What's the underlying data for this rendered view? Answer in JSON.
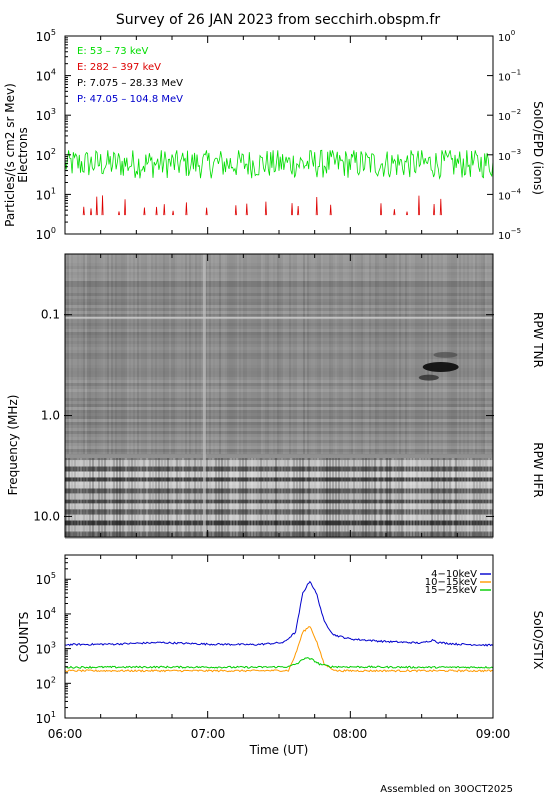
{
  "title": "Survey of 26 JAN 2023 from secchirh.obspm.fr",
  "footer": "Assembled on 30OCT2025",
  "x_axis": {
    "label": "Time (UT)",
    "ticks": [
      "06:00",
      "07:00",
      "08:00",
      "09:00"
    ]
  },
  "chart_data": [
    {
      "type": "line",
      "panel": "SoIO/EPD",
      "ylabel": [
        "Particles/(s cm2 sr Mev)",
        "Electrons"
      ],
      "right_label": "SoIO/EPD (ions)",
      "yscale": "log",
      "ylim": [
        1,
        100000
      ],
      "left_ticks": [
        {
          "v": 1,
          "b": "10",
          "e": "0"
        },
        {
          "v": 10,
          "b": "10",
          "e": "1"
        },
        {
          "v": 100,
          "b": "10",
          "e": "2"
        },
        {
          "v": 1000,
          "b": "10",
          "e": "3"
        },
        {
          "v": 10000,
          "b": "10",
          "e": "4"
        },
        {
          "v": 100000,
          "b": "10",
          "e": "5"
        }
      ],
      "right_ticks": [
        {
          "b": "10",
          "e": "−5"
        },
        {
          "b": "10",
          "e": "−4"
        },
        {
          "b": "10",
          "e": "−3"
        },
        {
          "b": "10",
          "e": "−2"
        },
        {
          "b": "10",
          "e": "−1"
        },
        {
          "b": "10",
          "e": "0"
        }
      ],
      "legend": [
        {
          "name": "E: 53 – 73 keV",
          "color": "#00dd00"
        },
        {
          "name": "E: 282 – 397 keV",
          "color": "#dd0000"
        },
        {
          "name": "P: 7.075 – 28.33 MeV",
          "color": "#000000"
        },
        {
          "name": "P: 47.05 – 104.8 MeV",
          "color": "#0000cc"
        }
      ],
      "series": [
        {
          "name": "E: 53 – 73 keV",
          "color": "#00dd00",
          "typical_value": 60,
          "range": [
            25,
            130
          ]
        },
        {
          "name": "E: 282 – 397 keV",
          "color": "#dd0000",
          "typical_value": 5,
          "range": [
            3,
            12
          ]
        }
      ]
    },
    {
      "type": "heatmap",
      "panel": "RPW",
      "ylabel": "Frequency (MHz)",
      "yscale": "log",
      "yrange_mhz": [
        0.025,
        16
      ],
      "y_ticks": [
        "0.1",
        "1.0",
        "10.0"
      ],
      "right_labels": [
        "RPW TNR",
        "RPW HFR"
      ],
      "colormap": "grayscale",
      "notable_feature": "dark drifting feature near 08:20–08:40 at about 0.3–0.5 MHz"
    },
    {
      "type": "line",
      "panel": "SoIO/STIX",
      "ylabel": "COUNTS",
      "right_label": "SoIO/STIX",
      "yscale": "log",
      "ylim": [
        10,
        100000
      ],
      "y_ticks": [
        {
          "v": 10,
          "b": "10",
          "e": "1"
        },
        {
          "v": 100,
          "b": "10",
          "e": "2"
        },
        {
          "v": 1000,
          "b": "10",
          "e": "3"
        },
        {
          "v": 10000,
          "b": "10",
          "e": "4"
        },
        {
          "v": 100000,
          "b": "10",
          "e": "5"
        }
      ],
      "series": [
        {
          "name": "4−10keV",
          "color": "#0000cc",
          "points": [
            [
              0,
              1300
            ],
            [
              20,
              1350
            ],
            [
              40,
              1500
            ],
            [
              60,
              1350
            ],
            [
              80,
              1300
            ],
            [
              92,
              1500
            ],
            [
              97,
              3000
            ],
            [
              100,
              40000
            ],
            [
              103,
              90000
            ],
            [
              106,
              35000
            ],
            [
              109,
              6000
            ],
            [
              113,
              2500
            ],
            [
              120,
              1900
            ],
            [
              135,
              1600
            ],
            [
              150,
              1450
            ],
            [
              155,
              1800
            ],
            [
              157,
              1500
            ],
            [
              165,
              1350
            ],
            [
              180,
              1250
            ]
          ]
        },
        {
          "name": "10−15keV",
          "color": "#ff9900",
          "points": [
            [
              0,
              230
            ],
            [
              40,
              230
            ],
            [
              80,
              230
            ],
            [
              94,
              235
            ],
            [
              97,
              700
            ],
            [
              100,
              3000
            ],
            [
              103,
              4500
            ],
            [
              106,
              1500
            ],
            [
              109,
              350
            ],
            [
              114,
              230
            ],
            [
              150,
              230
            ],
            [
              180,
              230
            ]
          ]
        },
        {
          "name": "15−25keV",
          "color": "#00cc00",
          "points": [
            [
              0,
              290
            ],
            [
              40,
              295
            ],
            [
              80,
              290
            ],
            [
              94,
              300
            ],
            [
              98,
              380
            ],
            [
              101,
              550
            ],
            [
              104,
              480
            ],
            [
              107,
              360
            ],
            [
              112,
              300
            ],
            [
              150,
              290
            ],
            [
              180,
              290
            ]
          ]
        }
      ]
    }
  ]
}
